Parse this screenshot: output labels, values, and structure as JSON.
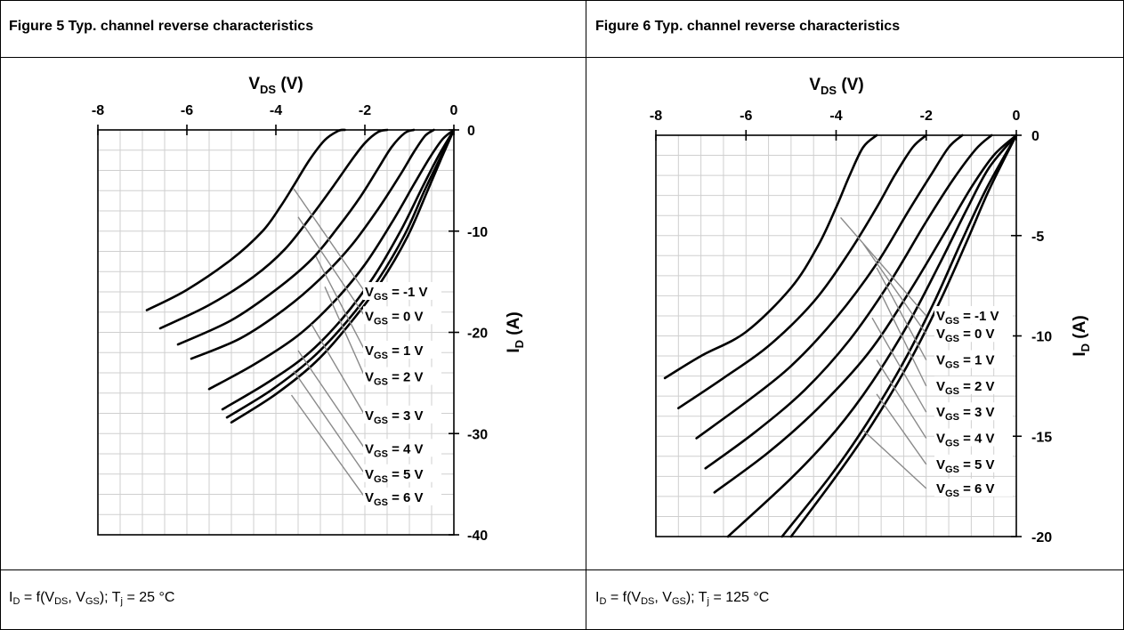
{
  "panels": [
    {
      "title": "Figure 5 Typ. channel reverse characteristics",
      "footer": {
        "id_sym": "I",
        "id_sub": "D",
        "f_open": " = f(V",
        "vds_sub": "DS",
        "mid": ", V",
        "vgs_sub": "GS",
        "close": "); T",
        "tj_sub": "j",
        "value": " = 25 °C"
      }
    },
    {
      "title": "Figure 6 Typ. channel reverse characteristics",
      "footer": {
        "id_sym": "I",
        "id_sub": "D",
        "f_open": " = f(V",
        "vds_sub": "DS",
        "mid": ", V",
        "vgs_sub": "GS",
        "close": "); T",
        "tj_sub": "j",
        "value": " = 125 °C"
      }
    }
  ],
  "chart_data": [
    {
      "type": "line",
      "title": "Figure 5 Typ. channel reverse characteristics",
      "xlabel": "VDS (V)",
      "ylabel": "ID (A)",
      "xlim": [
        -8,
        0
      ],
      "ylim": [
        -40,
        0
      ],
      "xticks": [
        "-8",
        "-6",
        "-4",
        "-2",
        "0"
      ],
      "yticks": [
        "0",
        "-10",
        "-20",
        "-30",
        "-40"
      ],
      "x_label_main": "V",
      "x_label_sub": "DS",
      "x_label_unit": " (V)",
      "y_label_main": "I",
      "y_label_sub": "D",
      "y_label_unit": " (A)",
      "grid": true,
      "series": [
        {
          "name": "VGS = -1 V",
          "label_main": "V",
          "label_sub": "GS",
          "label_val": " = -1 V",
          "x": [
            -6.9,
            -6.0,
            -5.0,
            -4.3,
            -3.9,
            -3.6,
            -3.25,
            -2.9,
            -2.6,
            -2.45
          ],
          "y": [
            -17.8,
            -15.8,
            -12.8,
            -10.0,
            -7.6,
            -5.5,
            -3.0,
            -1.0,
            -0.1,
            0
          ]
        },
        {
          "name": "VGS = 0 V",
          "label_main": "V",
          "label_sub": "GS",
          "label_val": " = 0 V",
          "x": [
            -6.6,
            -5.5,
            -4.5,
            -3.8,
            -3.2,
            -2.7,
            -2.3,
            -2.0,
            -1.7,
            -1.5
          ],
          "y": [
            -19.6,
            -17.3,
            -14.5,
            -11.8,
            -8.5,
            -5.5,
            -3.0,
            -1.3,
            -0.2,
            0
          ]
        },
        {
          "name": "VGS = 1 V",
          "label_main": "V",
          "label_sub": "GS",
          "label_val": " = 1 V",
          "x": [
            -6.2,
            -5.0,
            -4.0,
            -3.2,
            -2.6,
            -2.1,
            -1.7,
            -1.4,
            -1.1,
            -0.9
          ],
          "y": [
            -21.2,
            -18.8,
            -15.8,
            -12.8,
            -9.6,
            -6.6,
            -3.8,
            -1.7,
            -0.3,
            0
          ]
        },
        {
          "name": "VGS = 2 V",
          "label_main": "V",
          "label_sub": "GS",
          "label_val": " = 2 V",
          "x": [
            -5.9,
            -4.8,
            -3.8,
            -3.0,
            -2.3,
            -1.7,
            -1.2,
            -0.9,
            -0.65,
            -0.45
          ],
          "y": [
            -22.6,
            -20.6,
            -17.7,
            -14.7,
            -11.4,
            -7.8,
            -4.4,
            -2.2,
            -0.6,
            0
          ]
        },
        {
          "name": "VGS = 3 V",
          "label_main": "V",
          "label_sub": "GS",
          "label_val": " = 3 V",
          "x": [
            -5.5,
            -4.5,
            -3.5,
            -2.7,
            -2.0,
            -1.4,
            -0.9,
            -0.55,
            -0.25,
            0
          ],
          "y": [
            -25.6,
            -23.2,
            -20.3,
            -17.0,
            -13.3,
            -9.2,
            -5.4,
            -2.8,
            -0.9,
            0
          ]
        },
        {
          "name": "VGS = 4 V",
          "label_main": "V",
          "label_sub": "GS",
          "label_val": " = 4 V",
          "x": [
            -5.2,
            -4.2,
            -3.3,
            -2.5,
            -1.8,
            -1.2,
            -0.7,
            -0.35,
            0
          ],
          "y": [
            -27.6,
            -25.0,
            -22.2,
            -18.6,
            -14.5,
            -10.0,
            -5.6,
            -2.6,
            0
          ]
        },
        {
          "name": "VGS = 5 V",
          "label_main": "V",
          "label_sub": "GS",
          "label_val": " = 5 V",
          "x": [
            -5.1,
            -4.1,
            -3.2,
            -2.4,
            -1.7,
            -1.1,
            -0.65,
            -0.3,
            0
          ],
          "y": [
            -28.4,
            -25.7,
            -22.6,
            -18.9,
            -14.8,
            -10.3,
            -5.9,
            -2.7,
            0
          ]
        },
        {
          "name": "VGS = 6 V",
          "label_main": "V",
          "label_sub": "GS",
          "label_val": " = 6 V",
          "x": [
            -5.0,
            -4.0,
            -3.1,
            -2.35,
            -1.65,
            -1.05,
            -0.6,
            -0.28,
            0
          ],
          "y": [
            -28.9,
            -26.1,
            -22.9,
            -19.2,
            -15.1,
            -10.6,
            -6.1,
            -2.8,
            0
          ]
        }
      ],
      "leaders": [
        {
          "from": [
            -3.6,
            -5.8
          ],
          "to": [
            -2.0,
            -16.0
          ]
        },
        {
          "from": [
            -3.5,
            -8.6
          ],
          "to": [
            -2.0,
            -18.4
          ]
        },
        {
          "from": [
            -3.1,
            -12.5
          ],
          "to": [
            -2.0,
            -21.8
          ]
        },
        {
          "from": [
            -2.9,
            -15.5
          ],
          "to": [
            -2.0,
            -24.4
          ]
        },
        {
          "from": [
            -3.2,
            -19.2
          ],
          "to": [
            -2.0,
            -28.2
          ]
        },
        {
          "from": [
            -3.5,
            -21.8
          ],
          "to": [
            -2.0,
            -31.5
          ]
        },
        {
          "from": [
            -3.6,
            -23.8
          ],
          "to": [
            -2.0,
            -34.0
          ]
        },
        {
          "from": [
            -3.65,
            -26.2
          ],
          "to": [
            -2.0,
            -36.3
          ]
        }
      ]
    },
    {
      "type": "line",
      "title": "Figure 6 Typ. channel reverse characteristics",
      "xlabel": "VDS (V)",
      "ylabel": "ID (A)",
      "xlim": [
        -8,
        0
      ],
      "ylim": [
        -20,
        0
      ],
      "xticks": [
        "-8",
        "-6",
        "-4",
        "-2",
        "0"
      ],
      "yticks": [
        "0",
        "-5",
        "-10",
        "-15",
        "-20"
      ],
      "x_label_main": "V",
      "x_label_sub": "DS",
      "x_label_unit": " (V)",
      "y_label_main": "I",
      "y_label_sub": "D",
      "y_label_unit": " (A)",
      "grid": true,
      "series": [
        {
          "name": "VGS = -1 V",
          "label_main": "V",
          "label_sub": "GS",
          "label_val": " = -1 V",
          "x": [
            -7.8,
            -7.0,
            -6.0,
            -5.0,
            -4.4,
            -4.0,
            -3.7,
            -3.4,
            -3.1
          ],
          "y": [
            -12.1,
            -11.0,
            -9.8,
            -7.6,
            -5.5,
            -3.6,
            -2.0,
            -0.6,
            0
          ]
        },
        {
          "name": "VGS = 0 V",
          "label_main": "V",
          "label_sub": "GS",
          "label_val": " = 0 V",
          "x": [
            -7.5,
            -6.5,
            -5.5,
            -4.5,
            -3.7,
            -3.1,
            -2.7,
            -2.3,
            -2.0
          ],
          "y": [
            -13.6,
            -12.1,
            -10.5,
            -8.3,
            -5.8,
            -3.6,
            -2.0,
            -0.6,
            0
          ]
        },
        {
          "name": "VGS = 1 V",
          "label_main": "V",
          "label_sub": "GS",
          "label_val": " = 1 V",
          "x": [
            -7.1,
            -6.0,
            -5.0,
            -4.0,
            -3.1,
            -2.4,
            -1.9,
            -1.5,
            -1.2
          ],
          "y": [
            -15.1,
            -13.3,
            -11.5,
            -9.1,
            -6.4,
            -3.8,
            -2.0,
            -0.6,
            0
          ]
        },
        {
          "name": "VGS = 2 V",
          "label_main": "V",
          "label_sub": "GS",
          "label_val": " = 2 V",
          "x": [
            -6.9,
            -5.8,
            -4.7,
            -3.7,
            -2.8,
            -2.0,
            -1.4,
            -0.9,
            -0.55
          ],
          "y": [
            -16.6,
            -14.8,
            -12.7,
            -10.2,
            -7.3,
            -4.3,
            -2.2,
            -0.7,
            0
          ]
        },
        {
          "name": "VGS = 3 V",
          "label_main": "V",
          "label_sub": "GS",
          "label_val": " = 3 V",
          "x": [
            -6.7,
            -5.5,
            -4.4,
            -3.3,
            -2.4,
            -1.6,
            -1.0,
            -0.5,
            0
          ],
          "y": [
            -17.8,
            -15.8,
            -13.6,
            -10.9,
            -7.9,
            -4.9,
            -2.6,
            -1.0,
            0
          ]
        },
        {
          "name": "VGS = 4 V",
          "label_main": "V",
          "label_sub": "GS",
          "label_val": " = 4 V",
          "x": [
            -6.4,
            -5.0,
            -4.0,
            -3.2,
            -2.4,
            -1.7,
            -1.1,
            -0.6,
            0
          ],
          "y": [
            -20.0,
            -17.1,
            -14.7,
            -12.3,
            -9.4,
            -6.4,
            -3.7,
            -1.6,
            0
          ]
        },
        {
          "name": "VGS = 5 V",
          "label_main": "V",
          "label_sub": "GS",
          "label_val": " = 5 V",
          "x": [
            -5.2,
            -4.1,
            -3.3,
            -2.5,
            -1.8,
            -1.2,
            -0.65,
            0
          ],
          "y": [
            -20.0,
            -16.9,
            -14.3,
            -11.3,
            -8.2,
            -5.2,
            -2.6,
            0
          ]
        },
        {
          "name": "VGS = 6 V",
          "label_main": "V",
          "label_sub": "GS",
          "label_val": " = 6 V",
          "x": [
            -5.0,
            -4.0,
            -3.2,
            -2.4,
            -1.7,
            -1.1,
            -0.6,
            0
          ],
          "y": [
            -20.0,
            -17.0,
            -14.4,
            -11.4,
            -8.3,
            -5.3,
            -2.7,
            0
          ]
        }
      ],
      "leaders": [
        {
          "from": [
            -3.9,
            -4.1
          ],
          "to": [
            -2.0,
            -9.0
          ]
        },
        {
          "from": [
            -3.4,
            -5.4
          ],
          "to": [
            -2.0,
            -9.9
          ]
        },
        {
          "from": [
            -3.1,
            -6.6
          ],
          "to": [
            -2.0,
            -11.2
          ]
        },
        {
          "from": [
            -3.0,
            -7.9
          ],
          "to": [
            -2.0,
            -12.5
          ]
        },
        {
          "from": [
            -3.2,
            -9.1
          ],
          "to": [
            -2.0,
            -13.8
          ]
        },
        {
          "from": [
            -3.1,
            -11.2
          ],
          "to": [
            -2.0,
            -15.1
          ]
        },
        {
          "from": [
            -3.1,
            -12.9
          ],
          "to": [
            -2.0,
            -16.4
          ]
        },
        {
          "from": [
            -3.4,
            -14.7
          ],
          "to": [
            -2.0,
            -17.6
          ]
        }
      ]
    }
  ]
}
